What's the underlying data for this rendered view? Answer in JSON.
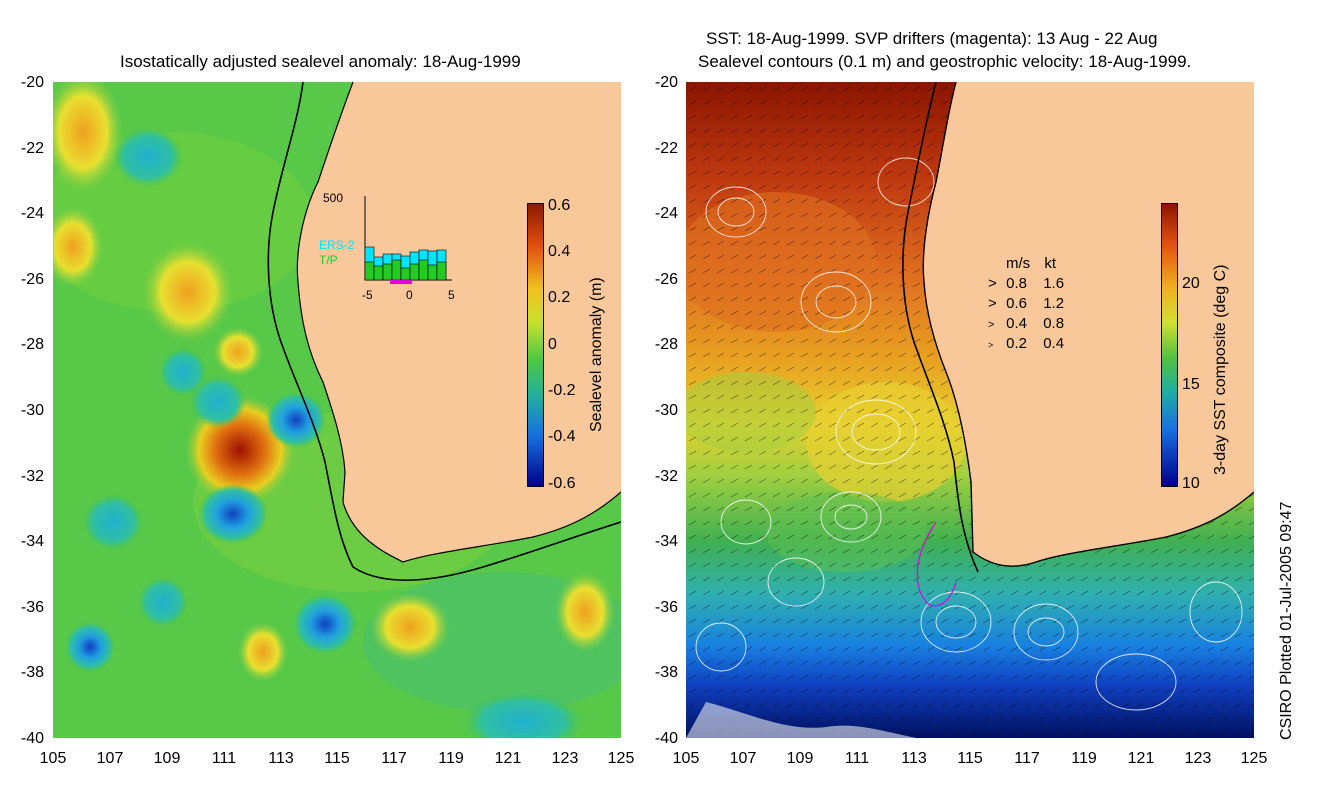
{
  "left_panel": {
    "title": "Isostatically adjusted sealevel anomaly: 18-Aug-1999",
    "y_ticks": [
      "-20",
      "-22",
      "-24",
      "-26",
      "-28",
      "-30",
      "-32",
      "-34",
      "-36",
      "-38",
      "-40"
    ],
    "x_ticks": [
      "105",
      "107",
      "109",
      "111",
      "113",
      "115",
      "117",
      "119",
      "121",
      "123",
      "125"
    ],
    "colorbar": {
      "label": "Sealevel anomaly (m)",
      "ticks": [
        "0.6",
        "0.4",
        "0.2",
        "0",
        "-0.2",
        "-0.4",
        "-0.6"
      ]
    },
    "inset": {
      "y_top_label": "500",
      "series1": "ERS-2",
      "series2": "T/P",
      "x_ticks": [
        "-5",
        "0",
        "5"
      ]
    }
  },
  "right_panel": {
    "title_line1": "SST: 18-Aug-1999. SVP drifters (magenta): 13 Aug - 22 Aug",
    "title_line2": "Sealevel contours (0.1 m) and geostrophic velocity: 18-Aug-1999.",
    "y_ticks": [
      "-20",
      "-22",
      "-24",
      "-26",
      "-28",
      "-30",
      "-32",
      "-34",
      "-36",
      "-38",
      "-40"
    ],
    "x_ticks": [
      "105",
      "107",
      "109",
      "111",
      "113",
      "115",
      "117",
      "119",
      "121",
      "123",
      "125"
    ],
    "colorbar": {
      "label": "3-day SST composite (deg C)",
      "ticks": [
        "20",
        "15",
        "10"
      ]
    },
    "velocity_legend": {
      "header_ms": "m/s",
      "header_kt": "kt",
      "rows": [
        {
          "ms": "0.8",
          "kt": "1.6"
        },
        {
          "ms": "0.6",
          "kt": "1.2"
        },
        {
          "ms": "0.4",
          "kt": "0.8"
        },
        {
          "ms": "0.2",
          "kt": "0.4"
        }
      ]
    }
  },
  "credit": "CSIRO Plotted 01-Jul-2005 09:47",
  "colors": {
    "land": "#f9c89a",
    "ocean_green": "#3cc83c",
    "anomaly_high": "#8b0000",
    "anomaly_low": "#00008b",
    "inset_ers2": "#00e5ff",
    "inset_tp": "#22cc22",
    "drifter": "#e000e0"
  }
}
